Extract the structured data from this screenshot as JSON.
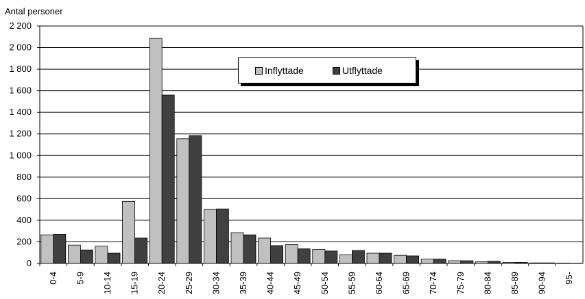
{
  "chart_data": {
    "type": "bar",
    "ylabel": "Antal personer",
    "ylim": [
      0,
      2200
    ],
    "yticks": [
      0,
      200,
      400,
      600,
      800,
      1000,
      1200,
      1400,
      1600,
      1800,
      2000,
      2200
    ],
    "ytick_labels": [
      "0",
      "200",
      "400",
      "600",
      "800",
      "1 000",
      "1 200",
      "1 400",
      "1 600",
      "1 800",
      "2 000",
      "2 200"
    ],
    "categories": [
      "0-4",
      "5-9",
      "10-14",
      "15-19",
      "20-24",
      "25-29",
      "30-34",
      "35-39",
      "40-44",
      "45-49",
      "50-54",
      "55-59",
      "60-64",
      "65-69",
      "70-74",
      "75-79",
      "80-84",
      "85-89",
      "90-94",
      "95-"
    ],
    "series": [
      {
        "name": "Inflyttade",
        "color": "#c0c0c0",
        "values": [
          265,
          170,
          160,
          575,
          2085,
          1155,
          500,
          285,
          235,
          175,
          130,
          80,
          95,
          75,
          40,
          25,
          15,
          10,
          5,
          3
        ]
      },
      {
        "name": "Utflyttade",
        "color": "#404040",
        "values": [
          270,
          125,
          95,
          235,
          1560,
          1185,
          505,
          265,
          165,
          135,
          115,
          120,
          95,
          70,
          40,
          25,
          20,
          10,
          5,
          2
        ]
      }
    ],
    "grid": true,
    "legend_position": "top-center"
  }
}
